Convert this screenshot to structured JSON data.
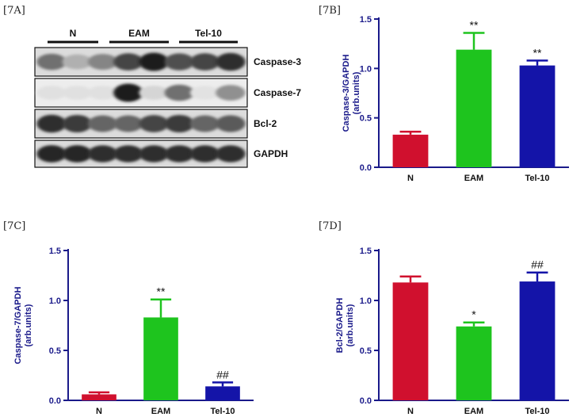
{
  "blot": {
    "label": "[7A]",
    "groups": [
      "N",
      "EAM",
      "Tel-10"
    ],
    "bands": [
      {
        "name": "Caspase-3",
        "lanes": [
          0.55,
          0.25,
          0.45,
          0.75,
          0.95,
          0.7,
          0.75,
          0.85
        ]
      },
      {
        "name": "Caspase-7",
        "lanes": [
          0.03,
          0.03,
          0.03,
          0.95,
          0.08,
          0.55,
          0.02,
          0.4
        ]
      },
      {
        "name": "Bcl-2",
        "lanes": [
          0.85,
          0.8,
          0.6,
          0.6,
          0.75,
          0.8,
          0.6,
          0.65
        ]
      },
      {
        "name": "GAPDH",
        "lanes": [
          0.9,
          0.9,
          0.85,
          0.85,
          0.85,
          0.85,
          0.85,
          0.85
        ]
      }
    ]
  },
  "colors": {
    "N": "#d0102e",
    "EAM": "#1ec41e",
    "Tel-10": "#1414a8",
    "axis": "#1a1a8a"
  },
  "chart_data": [
    {
      "id": "7B",
      "type": "bar",
      "label": "[7B]",
      "categories": [
        "N",
        "EAM",
        "Tel-10"
      ],
      "values": [
        0.33,
        1.19,
        1.03
      ],
      "errors": [
        0.03,
        0.17,
        0.05
      ],
      "annotations": [
        "",
        "**",
        "**"
      ],
      "ylabel": [
        "Caspase-3/GAPDH",
        "(arb.units)"
      ],
      "ylim": [
        0,
        1.5
      ],
      "yticks": [
        "0.0",
        "0.5",
        "1.0",
        "1.5"
      ]
    },
    {
      "id": "7C",
      "type": "bar",
      "label": "[7C]",
      "categories": [
        "N",
        "EAM",
        "Tel-10"
      ],
      "values": [
        0.06,
        0.83,
        0.14
      ],
      "errors": [
        0.02,
        0.18,
        0.04
      ],
      "annotations": [
        "",
        "**",
        "##"
      ],
      "ylabel": [
        "Caspase-7/GAPDH",
        "(arb.units)"
      ],
      "ylim": [
        0,
        1.5
      ],
      "yticks": [
        "0.0",
        "0.5",
        "1.0",
        "1.5"
      ]
    },
    {
      "id": "7D",
      "type": "bar",
      "label": "[7D]",
      "categories": [
        "N",
        "EAM",
        "Tel-10"
      ],
      "values": [
        1.18,
        0.74,
        1.19
      ],
      "errors": [
        0.06,
        0.04,
        0.09
      ],
      "annotations": [
        "",
        "*",
        "##"
      ],
      "ylabel": [
        "Bcl-2/GAPDH",
        "(arb.units)"
      ],
      "ylim": [
        0,
        1.5
      ],
      "yticks": [
        "0.0",
        "0.5",
        "1.0",
        "1.5"
      ]
    }
  ]
}
